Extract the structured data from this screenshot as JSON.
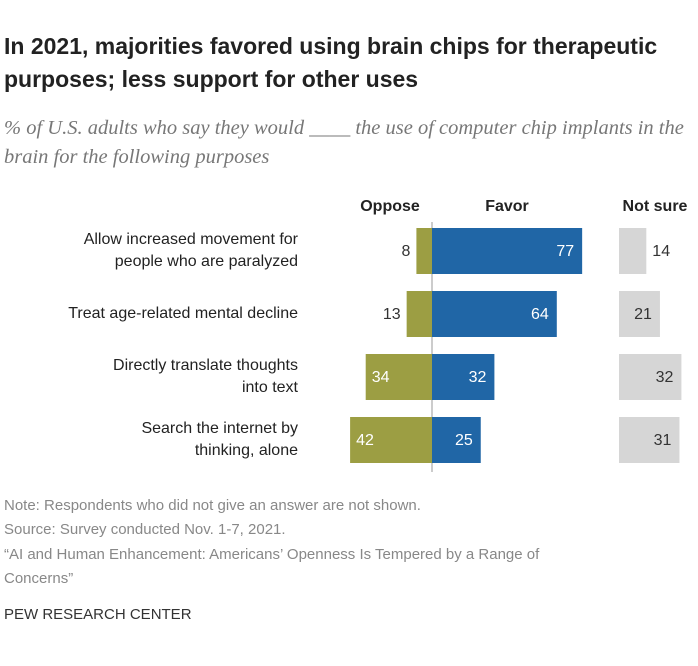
{
  "chart_data": {
    "type": "diverging_bar",
    "title": "In 2021, majorities favored using brain chips for therapeutic purposes; less support for other uses",
    "subtitle": "% of U.S. adults who say they would ____ the use of computer chip implants in the brain for the following purposes",
    "categories": [
      "Allow increased movement for\npeople who are paralyzed",
      "Treat age-related mental decline",
      "Directly translate thoughts\ninto text",
      "Search the internet by\nthinking, alone"
    ],
    "series": [
      {
        "name": "Oppose",
        "color": "#9c9e43",
        "values": [
          8,
          13,
          34,
          42
        ]
      },
      {
        "name": "Favor",
        "color": "#2066a6",
        "values": [
          77,
          64,
          32,
          25
        ]
      },
      {
        "name": "Not sure",
        "color": "#d6d6d6",
        "values": [
          14,
          21,
          32,
          31
        ]
      }
    ],
    "note": "Note: Respondents who did not give an answer are not shown.",
    "source": "Source: Survey conducted Nov. 1-7, 2021.",
    "report": "“AI and Human Enhancement: Americans’ Openness Is Tempered by a Range of\nConcerns”",
    "credit": "PEW RESEARCH CENTER"
  }
}
